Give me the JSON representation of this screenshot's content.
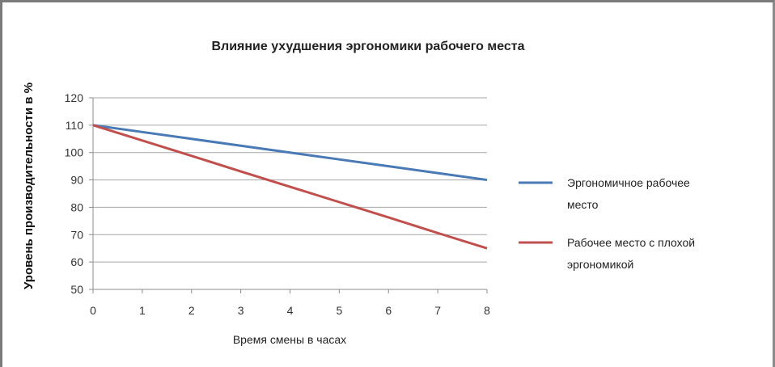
{
  "chart_data": {
    "type": "line",
    "title": "Влияние ухудшения эргономики рабочего места",
    "xlabel": "Время смены в часах",
    "ylabel": "Уровень производительности в %",
    "x": [
      0,
      1,
      2,
      3,
      4,
      5,
      6,
      7,
      8
    ],
    "xlim": [
      0,
      8
    ],
    "ylim": [
      50,
      120
    ],
    "yticks": [
      50,
      60,
      70,
      80,
      90,
      100,
      110,
      120
    ],
    "grid": true,
    "legend_position": "right",
    "series": [
      {
        "name": "Эргономичное рабочее место",
        "legend_lines": [
          "Эргономичное рабочее",
          "место"
        ],
        "color": "#4a7ab5",
        "values": [
          110,
          107.5,
          105,
          102.5,
          100,
          97.5,
          95,
          92.5,
          90
        ]
      },
      {
        "name": "Рабочее место с плохой эргономикой",
        "legend_lines": [
          "Рабочее место с плохой",
          "эргономикой"
        ],
        "color": "#c0504d",
        "values": [
          110,
          104.4,
          98.8,
          93.1,
          87.5,
          81.9,
          76.3,
          70.6,
          65
        ]
      }
    ]
  }
}
